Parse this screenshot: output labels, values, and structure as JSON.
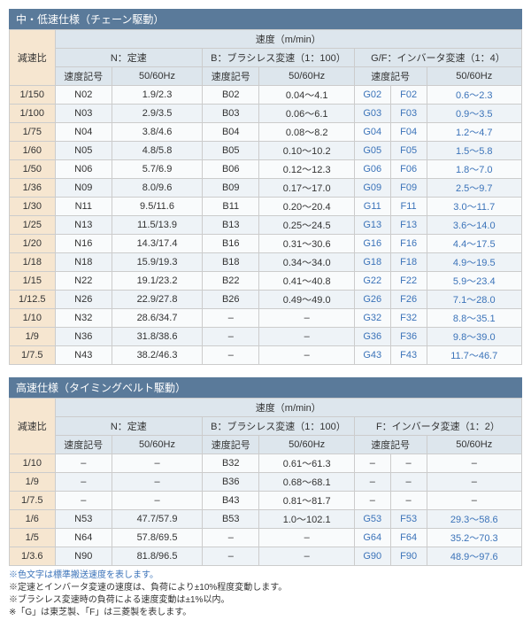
{
  "section1": {
    "title": "中・低速仕様（チェーン駆動）",
    "header_top": "速度（m/min）",
    "header_groups": [
      "N：定速",
      "B：ブラシレス変速（1：100）",
      "G/F：インバータ変速（1：4）"
    ],
    "header_sub": [
      "速度記号",
      "50/60Hz",
      "速度記号",
      "50/60Hz",
      "速度記号",
      "50/60Hz"
    ],
    "ratio_label": "減速比",
    "rows": [
      {
        "ratio": "1/150",
        "n": "N02",
        "nhz": "1.9/2.3",
        "b": "B02",
        "bhz": "0.04～4.1",
        "g": "G02",
        "f": "F02",
        "gfhz": "0.6～2.3"
      },
      {
        "ratio": "1/100",
        "n": "N03",
        "nhz": "2.9/3.5",
        "b": "B03",
        "bhz": "0.06～6.1",
        "g": "G03",
        "f": "F03",
        "gfhz": "0.9～3.5"
      },
      {
        "ratio": "1/75",
        "n": "N04",
        "nhz": "3.8/4.6",
        "b": "B04",
        "bhz": "0.08～8.2",
        "g": "G04",
        "f": "F04",
        "gfhz": "1.2～4.7"
      },
      {
        "ratio": "1/60",
        "n": "N05",
        "nhz": "4.8/5.8",
        "b": "B05",
        "bhz": "0.10～10.2",
        "g": "G05",
        "f": "F05",
        "gfhz": "1.5～5.8"
      },
      {
        "ratio": "1/50",
        "n": "N06",
        "nhz": "5.7/6.9",
        "b": "B06",
        "bhz": "0.12～12.3",
        "g": "G06",
        "f": "F06",
        "gfhz": "1.8～7.0"
      },
      {
        "ratio": "1/36",
        "n": "N09",
        "nhz": "8.0/9.6",
        "b": "B09",
        "bhz": "0.17～17.0",
        "g": "G09",
        "f": "F09",
        "gfhz": "2.5～9.7"
      },
      {
        "ratio": "1/30",
        "n": "N11",
        "nhz": "9.5/11.6",
        "b": "B11",
        "bhz": "0.20～20.4",
        "g": "G11",
        "f": "F11",
        "gfhz": "3.0～11.7"
      },
      {
        "ratio": "1/25",
        "n": "N13",
        "nhz": "11.5/13.9",
        "b": "B13",
        "bhz": "0.25～24.5",
        "g": "G13",
        "f": "F13",
        "gfhz": "3.6～14.0"
      },
      {
        "ratio": "1/20",
        "n": "N16",
        "nhz": "14.3/17.4",
        "b": "B16",
        "bhz": "0.31～30.6",
        "g": "G16",
        "f": "F16",
        "gfhz": "4.4～17.5"
      },
      {
        "ratio": "1/18",
        "n": "N18",
        "nhz": "15.9/19.3",
        "b": "B18",
        "bhz": "0.34～34.0",
        "g": "G18",
        "f": "F18",
        "gfhz": "4.9～19.5"
      },
      {
        "ratio": "1/15",
        "n": "N22",
        "nhz": "19.1/23.2",
        "b": "B22",
        "bhz": "0.41～40.8",
        "g": "G22",
        "f": "F22",
        "gfhz": "5.9～23.4"
      },
      {
        "ratio": "1/12.5",
        "n": "N26",
        "nhz": "22.9/27.8",
        "b": "B26",
        "bhz": "0.49～49.0",
        "g": "G26",
        "f": "F26",
        "gfhz": "7.1～28.0"
      },
      {
        "ratio": "1/10",
        "n": "N32",
        "nhz": "28.6/34.7",
        "b": "–",
        "bhz": "–",
        "g": "G32",
        "f": "F32",
        "gfhz": "8.8～35.1"
      },
      {
        "ratio": "1/9",
        "n": "N36",
        "nhz": "31.8/38.6",
        "b": "–",
        "bhz": "–",
        "g": "G36",
        "f": "F36",
        "gfhz": "9.8～39.0"
      },
      {
        "ratio": "1/7.5",
        "n": "N43",
        "nhz": "38.2/46.3",
        "b": "–",
        "bhz": "–",
        "g": "G43",
        "f": "F43",
        "gfhz": "11.7～46.7"
      }
    ]
  },
  "section2": {
    "title": "高速仕様（タイミングベルト駆動）",
    "header_top": "速度（m/min）",
    "header_groups": [
      "N：定速",
      "B：ブラシレス変速（1：100）",
      "F：インバータ変速（1：2）"
    ],
    "header_sub": [
      "速度記号",
      "50/60Hz",
      "速度記号",
      "50/60Hz",
      "速度記号",
      "50/60Hz"
    ],
    "ratio_label": "減速比",
    "rows": [
      {
        "ratio": "1/10",
        "n": "–",
        "nhz": "–",
        "b": "B32",
        "bhz": "0.61～61.3",
        "g": "–",
        "f": "–",
        "gfhz": "–"
      },
      {
        "ratio": "1/9",
        "n": "–",
        "nhz": "–",
        "b": "B36",
        "bhz": "0.68～68.1",
        "g": "–",
        "f": "–",
        "gfhz": "–"
      },
      {
        "ratio": "1/7.5",
        "n": "–",
        "nhz": "–",
        "b": "B43",
        "bhz": "0.81～81.7",
        "g": "–",
        "f": "–",
        "gfhz": "–"
      },
      {
        "ratio": "1/6",
        "n": "N53",
        "nhz": "47.7/57.9",
        "b": "B53",
        "bhz": "1.0～102.1",
        "g": "G53",
        "f": "F53",
        "gfhz": "29.3～58.6"
      },
      {
        "ratio": "1/5",
        "n": "N64",
        "nhz": "57.8/69.5",
        "b": "–",
        "bhz": "–",
        "g": "G64",
        "f": "F64",
        "gfhz": "35.2～70.3"
      },
      {
        "ratio": "1/3.6",
        "n": "N90",
        "nhz": "81.8/96.5",
        "b": "–",
        "bhz": "–",
        "g": "G90",
        "f": "F90",
        "gfhz": "48.9～97.6"
      }
    ]
  },
  "notes": [
    "※色文字は標準搬送速度を表します。",
    "※定速とインバータ変速の速度は、負荷により±10%程度変動します。",
    "※ブラシレス変速時の負荷による速度変動は±1%以内。",
    "※「G」は東芝製、「F」は三菱製を表します。"
  ]
}
